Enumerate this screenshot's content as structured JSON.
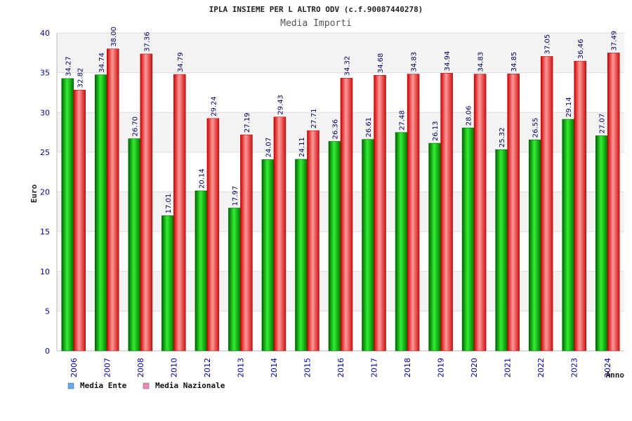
{
  "chart_data": {
    "type": "bar",
    "title": "IPLA INSIEME PER L ALTRO ODV (c.f.90087440278)",
    "subtitle": "Media Importi",
    "xlabel": "Anno",
    "ylabel": "Euro",
    "ylim": [
      0,
      40
    ],
    "yticks": [
      0,
      5,
      10,
      15,
      20,
      25,
      30,
      35,
      40
    ],
    "grid": true,
    "legend_position": "bottom-left",
    "categories": [
      "2006",
      "2007",
      "2008",
      "2010",
      "2012",
      "2013",
      "2014",
      "2015",
      "2016",
      "2017",
      "2018",
      "2019",
      "2020",
      "2021",
      "2022",
      "2023",
      "2024"
    ],
    "series": [
      {
        "name": "Media Ente",
        "color": "#00aa00",
        "legend_color": "#66aaee",
        "values": [
          34.27,
          34.74,
          26.7,
          17.01,
          20.14,
          17.97,
          24.07,
          24.11,
          26.36,
          26.61,
          27.48,
          26.13,
          28.06,
          25.32,
          26.55,
          29.14,
          27.07
        ],
        "labels": [
          "34.27",
          "34.74",
          "26.70",
          "17.01",
          "20.14",
          "17.97",
          "24.07",
          "24.11",
          "26.36",
          "26.61",
          "27.48",
          "26.13",
          "28.06",
          "25.32",
          "26.55",
          "29.14",
          "27.07"
        ]
      },
      {
        "name": "Media Nazionale",
        "color": "#ee2222",
        "legend_color": "#ee88bb",
        "values": [
          32.82,
          38.0,
          37.36,
          34.79,
          29.24,
          27.19,
          29.43,
          27.71,
          34.32,
          34.68,
          34.83,
          34.94,
          34.83,
          34.85,
          37.05,
          36.46,
          37.49
        ],
        "labels": [
          "32.82",
          "38.00",
          "37.36",
          "34.79",
          "29.24",
          "27.19",
          "29.43",
          "27.71",
          "34.32",
          "34.68",
          "34.83",
          "34.94",
          "34.83",
          "34.85",
          "37.05",
          "36.46",
          "37.49"
        ]
      }
    ]
  }
}
